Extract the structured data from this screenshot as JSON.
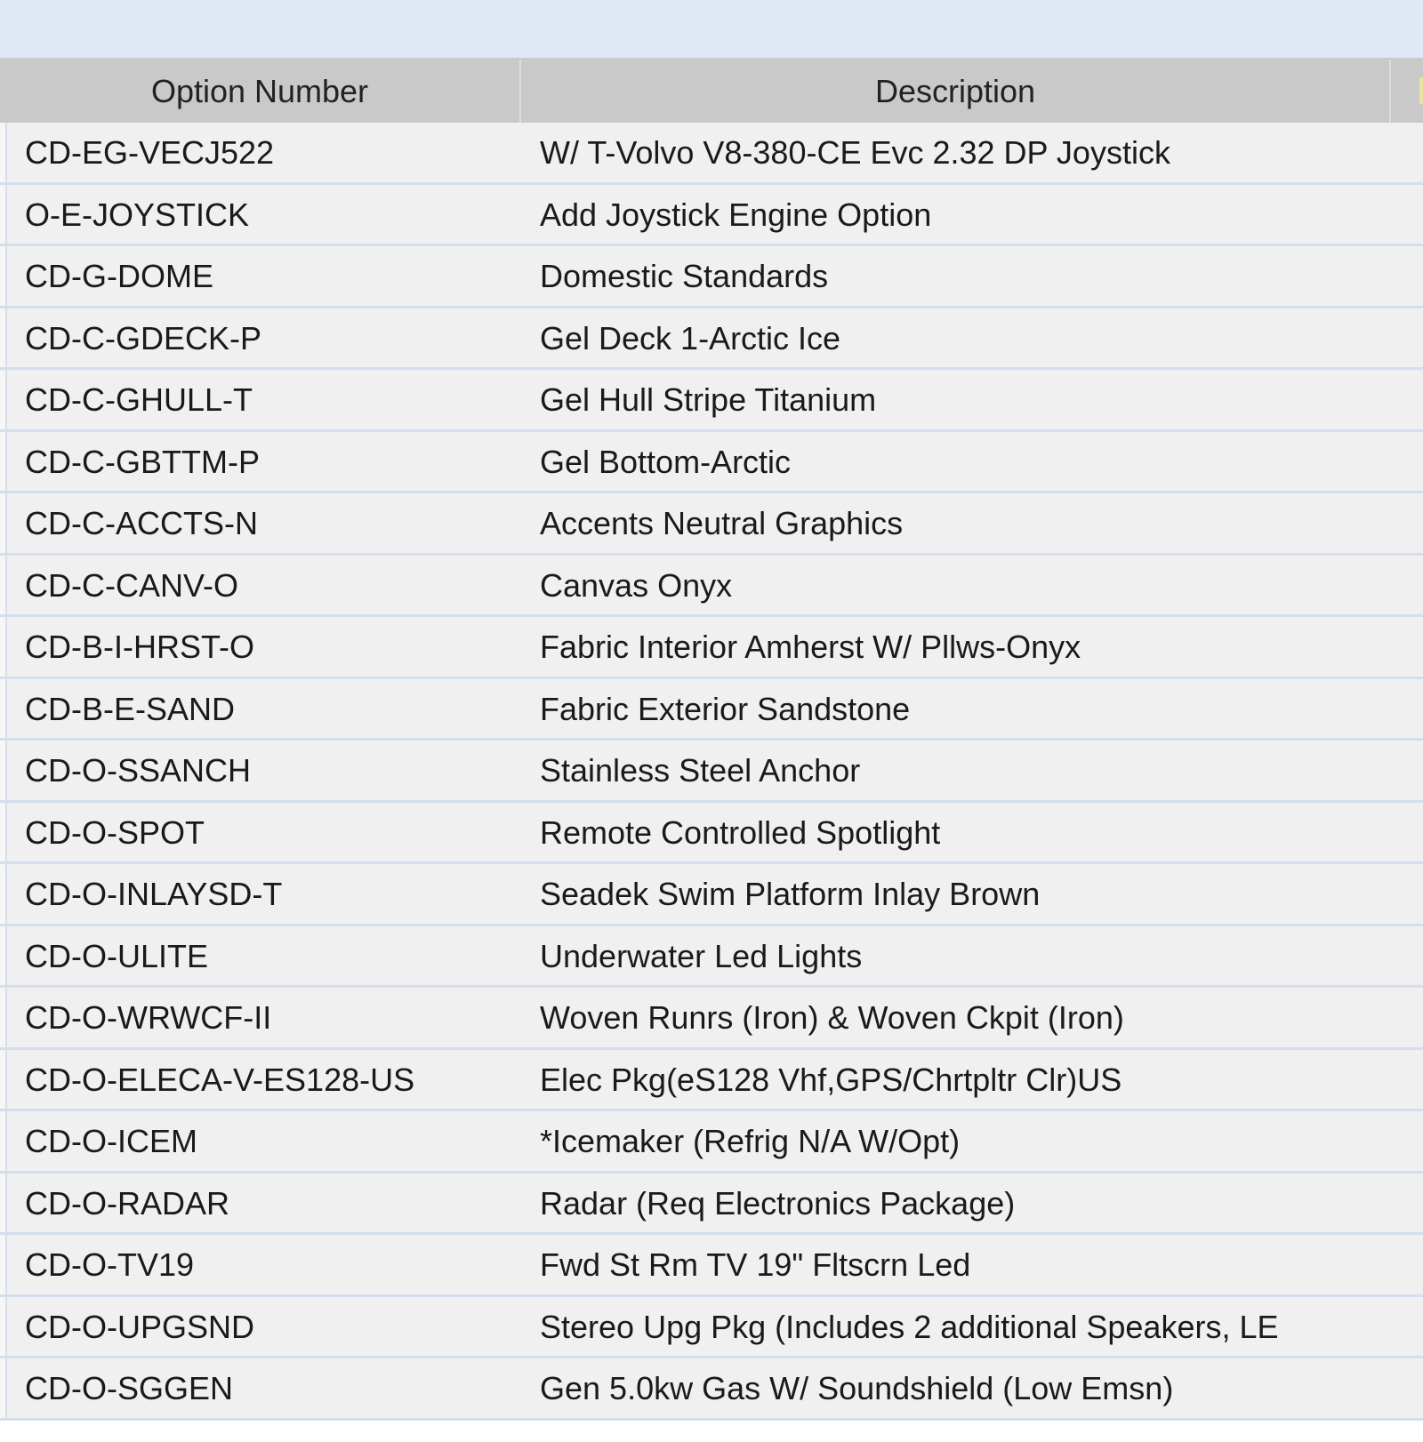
{
  "table": {
    "columns": [
      "Option Number",
      "Description"
    ],
    "rows": [
      {
        "option": "CD-EG-VECJ522",
        "description": "W/ T-Volvo V8-380-CE Evc 2.32 DP Joystick"
      },
      {
        "option": "O-E-JOYSTICK",
        "description": "Add Joystick Engine Option"
      },
      {
        "option": "CD-G-DOME",
        "description": "Domestic Standards"
      },
      {
        "option": "CD-C-GDECK-P",
        "description": "Gel Deck 1-Arctic Ice"
      },
      {
        "option": "CD-C-GHULL-T",
        "description": "Gel Hull Stripe Titanium"
      },
      {
        "option": "CD-C-GBTTM-P",
        "description": "Gel Bottom-Arctic"
      },
      {
        "option": "CD-C-ACCTS-N",
        "description": "Accents Neutral Graphics"
      },
      {
        "option": "CD-C-CANV-O",
        "description": "Canvas Onyx"
      },
      {
        "option": "CD-B-I-HRST-O",
        "description": "Fabric Interior Amherst W/ Pllws-Onyx"
      },
      {
        "option": "CD-B-E-SAND",
        "description": "Fabric Exterior Sandstone"
      },
      {
        "option": "CD-O-SSANCH",
        "description": "Stainless Steel Anchor"
      },
      {
        "option": "CD-O-SPOT",
        "description": "Remote Controlled Spotlight"
      },
      {
        "option": "CD-O-INLAYSD-T",
        "description": "Seadek Swim Platform Inlay Brown"
      },
      {
        "option": "CD-O-ULITE",
        "description": "Underwater Led Lights"
      },
      {
        "option": "CD-O-WRWCF-II",
        "description": "Woven Runrs (Iron) & Woven Ckpit (Iron)"
      },
      {
        "option": "CD-O-ELECA-V-ES128-US",
        "description": "Elec Pkg(eS128 Vhf,GPS/Chrtpltr Clr)US"
      },
      {
        "option": "CD-O-ICEM",
        "description": "*Icemaker (Refrig N/A W/Opt)"
      },
      {
        "option": "CD-O-RADAR",
        "description": "Radar (Req Electronics Package)"
      },
      {
        "option": "CD-O-TV19",
        "description": "Fwd St Rm TV 19\" Fltscrn Led"
      },
      {
        "option": "CD-O-UPGSND",
        "description": "Stereo Upg Pkg (Includes 2 additional Speakers, LE"
      },
      {
        "option": "CD-O-SGGEN",
        "description": "Gen 5.0kw Gas W/ Soundshield (Low Emsn)"
      }
    ]
  }
}
